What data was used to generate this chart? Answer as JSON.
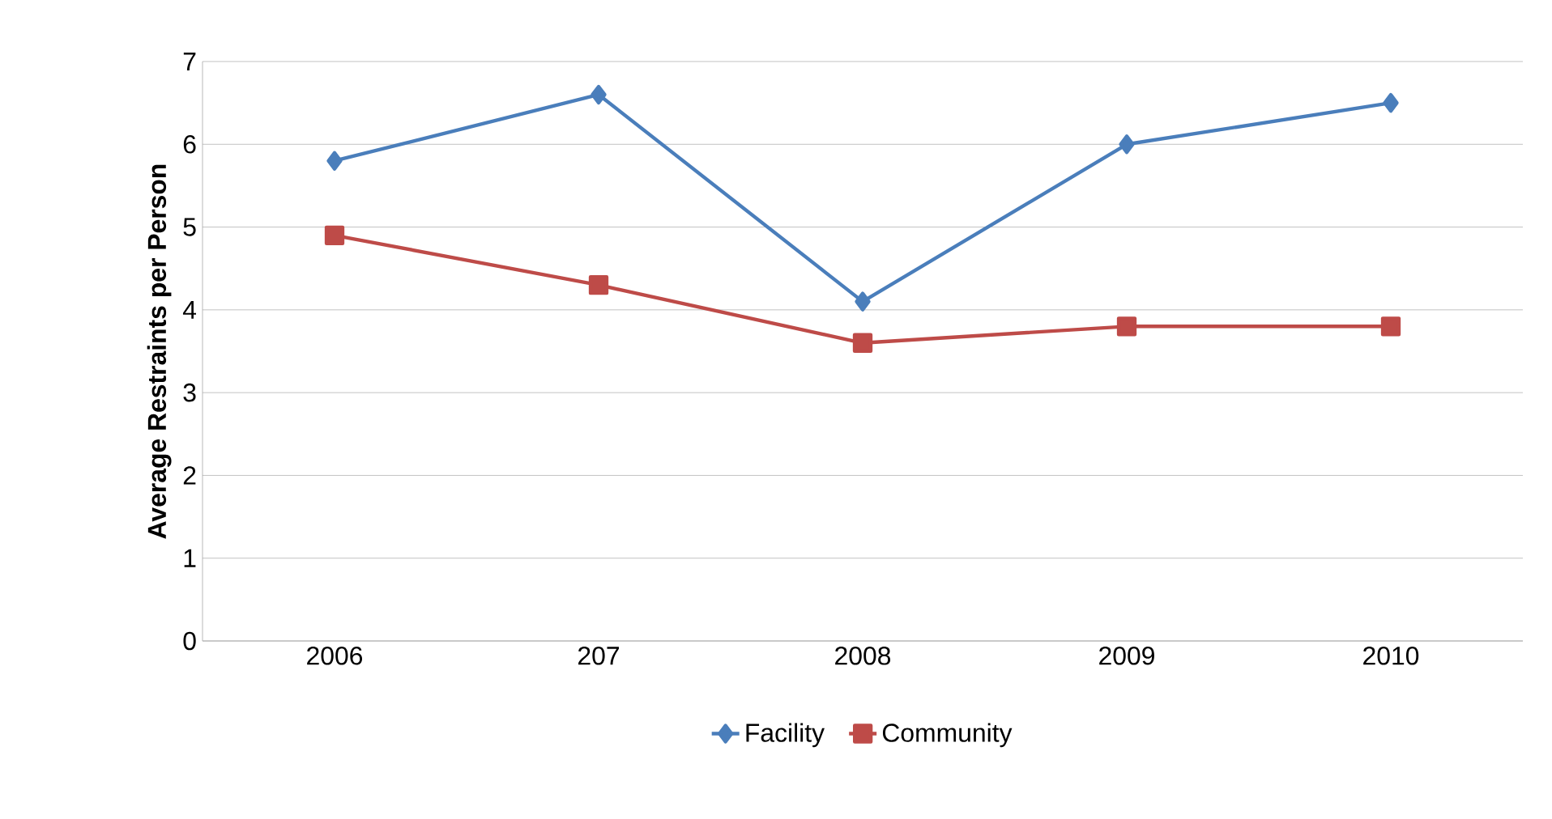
{
  "chart_data": {
    "type": "line",
    "ylabel": "Average Restraints per Person",
    "categories": [
      "2006",
      "207",
      "2008",
      "2009",
      "2010"
    ],
    "series": [
      {
        "name": "Facility",
        "color": "#4a7ebb",
        "marker": "diamond",
        "values": [
          5.8,
          6.6,
          4.1,
          6.0,
          6.5
        ]
      },
      {
        "name": "Community",
        "color": "#be4b48",
        "marker": "square",
        "values": [
          4.9,
          4.3,
          3.6,
          3.8,
          3.8
        ]
      }
    ],
    "ylim": [
      0,
      7
    ],
    "yticks": [
      0,
      1,
      2,
      3,
      4,
      5,
      6,
      7
    ],
    "grid": "y",
    "legend": "bottom"
  }
}
